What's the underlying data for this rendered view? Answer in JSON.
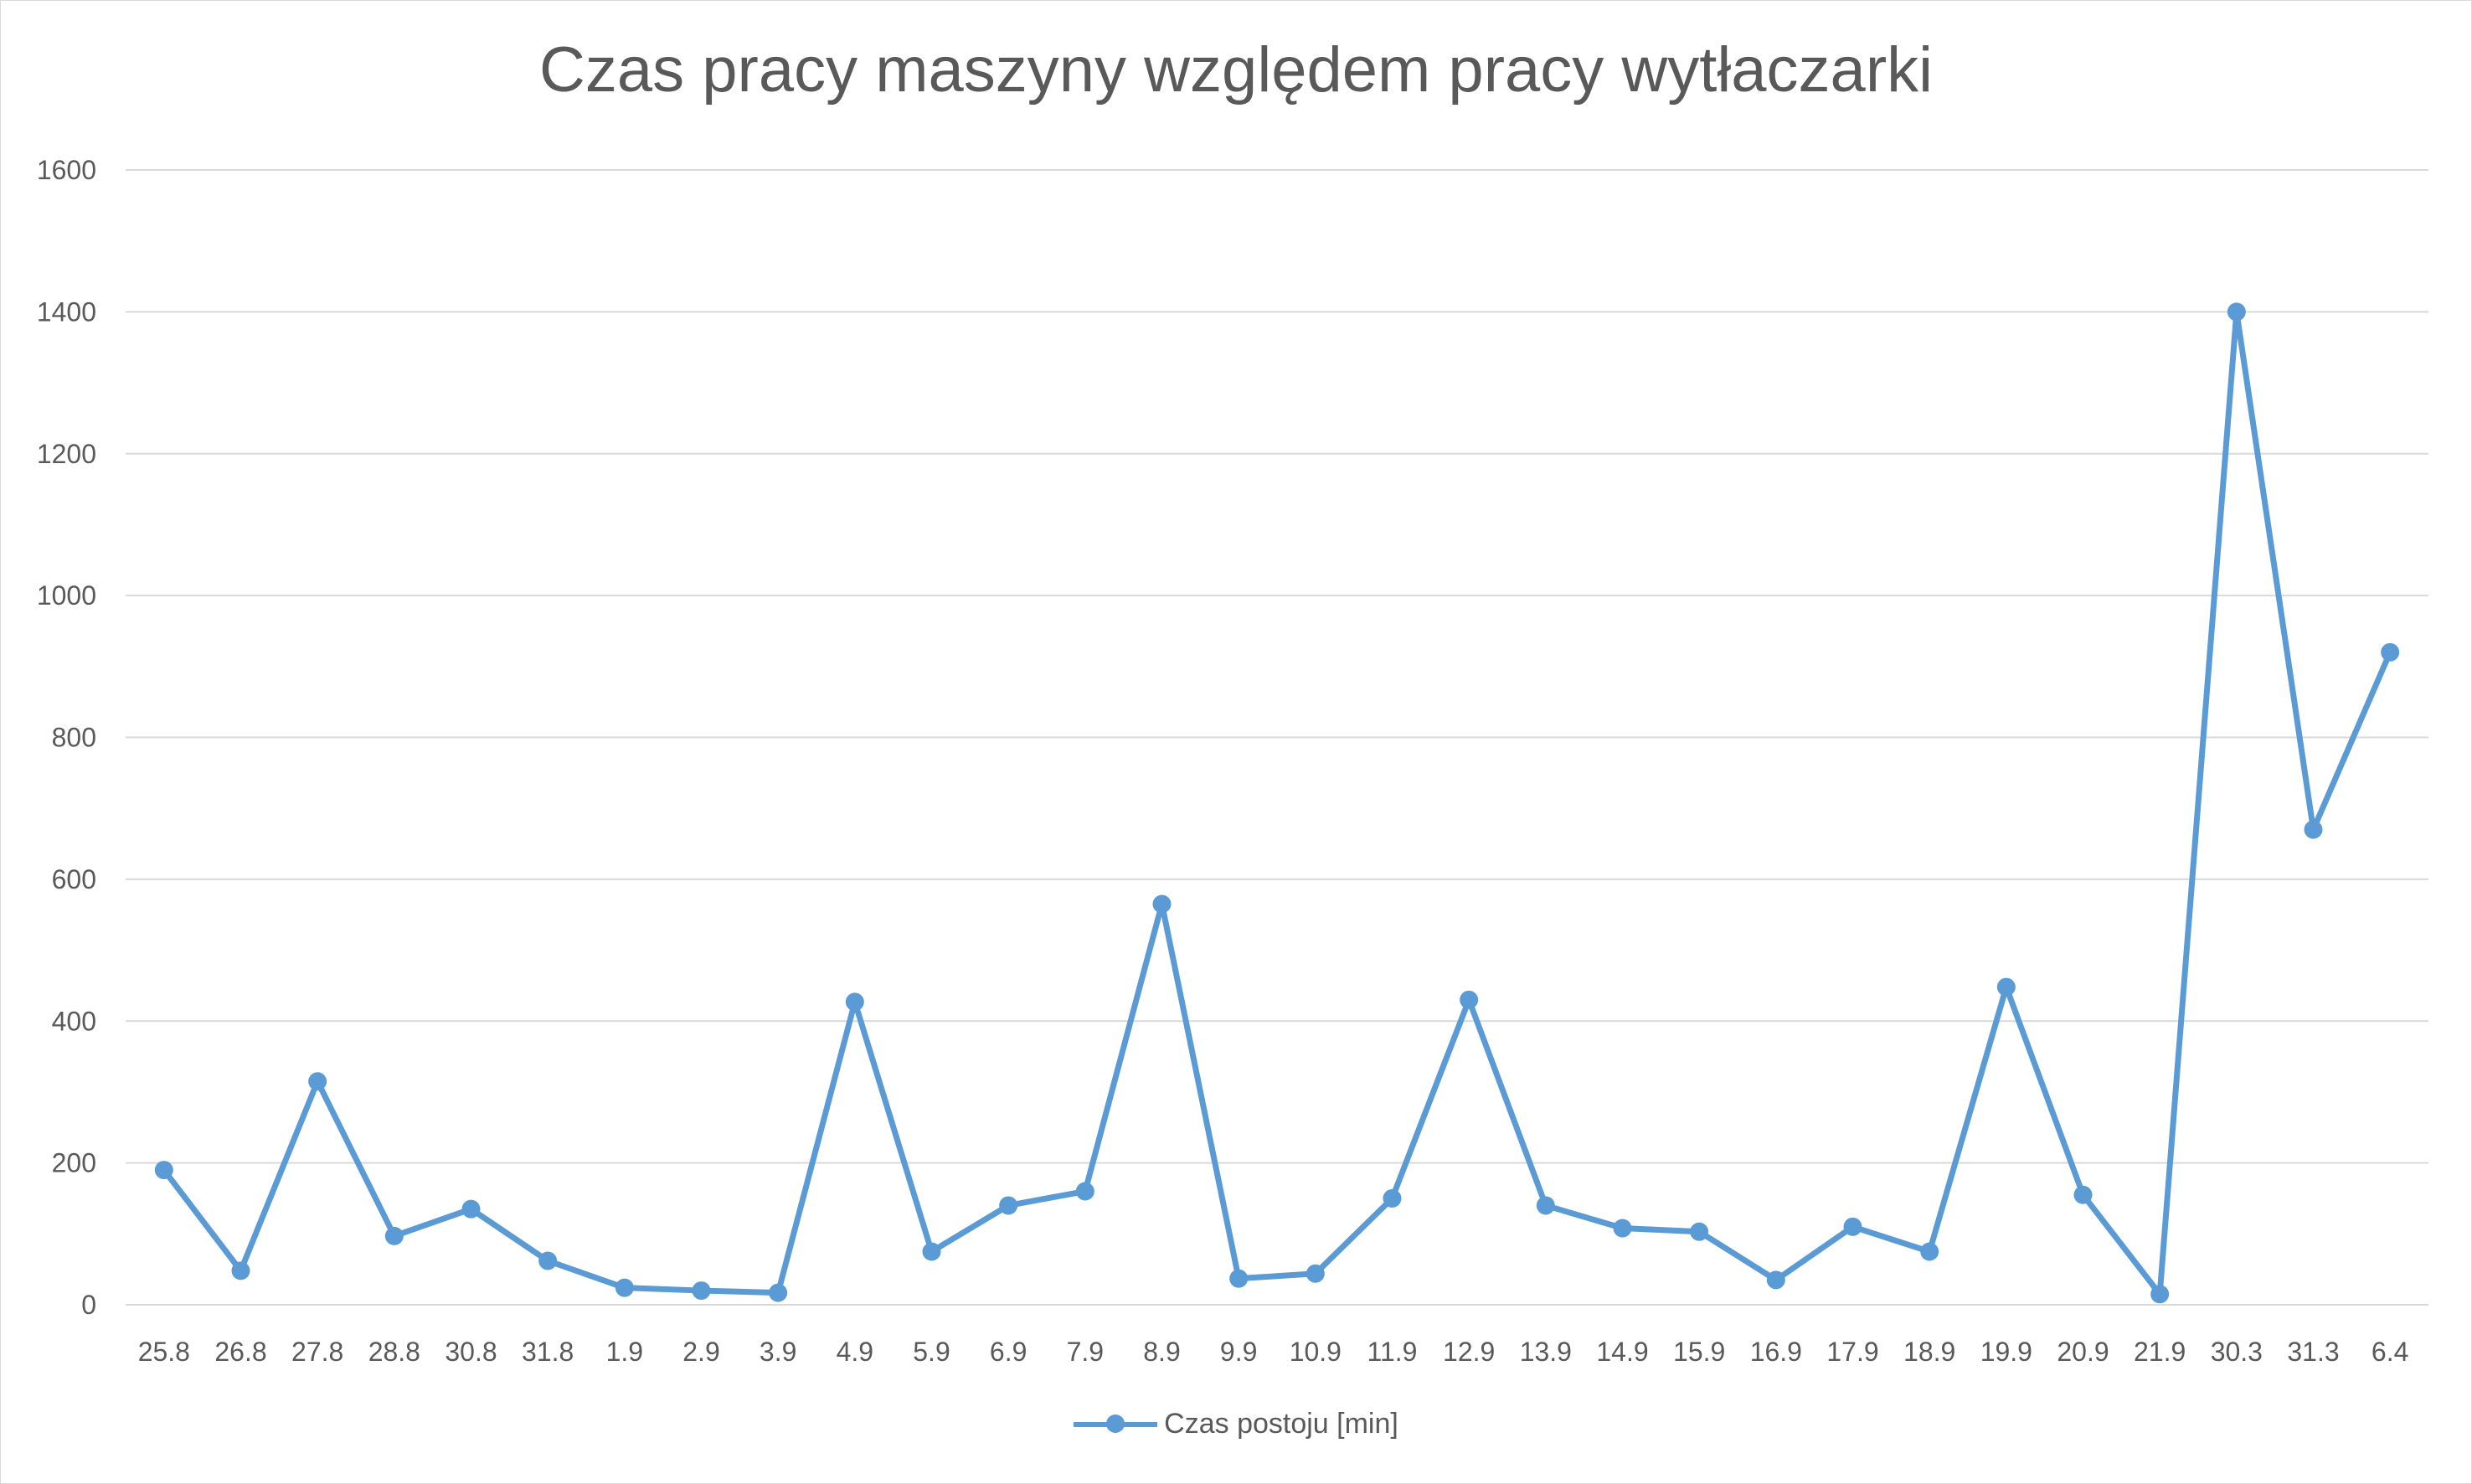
{
  "chart_data": {
    "type": "line",
    "title": "Czas pracy maszyny względem pracy wytłaczarki",
    "xlabel": "",
    "ylabel": "",
    "ylim": [
      0,
      1600
    ],
    "yticks": [
      "0",
      "200",
      "400",
      "600",
      "800",
      "1000",
      "1200",
      "1400",
      "1600"
    ],
    "grid": true,
    "legend_position": "bottom",
    "categories": [
      "25.8",
      "26.8",
      "27.8",
      "28.8",
      "30.8",
      "31.8",
      "1.9",
      "2.9",
      "3.9",
      "4.9",
      "5.9",
      "6.9",
      "7.9",
      "8.9",
      "9.9",
      "10.9",
      "11.9",
      "12.9",
      "13.9",
      "14.9",
      "15.9",
      "16.9",
      "17.9",
      "18.9",
      "19.9",
      "20.9",
      "21.9",
      "30.3",
      "31.3",
      "6.4"
    ],
    "series": [
      {
        "name": "Czas postoju [min]",
        "color": "#5b9bd5",
        "values": [
          190,
          48,
          315,
          97,
          135,
          62,
          24,
          20,
          17,
          427,
          75,
          140,
          160,
          565,
          37,
          44,
          150,
          430,
          140,
          108,
          103,
          35,
          110,
          75,
          448,
          155,
          15,
          1400,
          670,
          920
        ]
      }
    ]
  }
}
